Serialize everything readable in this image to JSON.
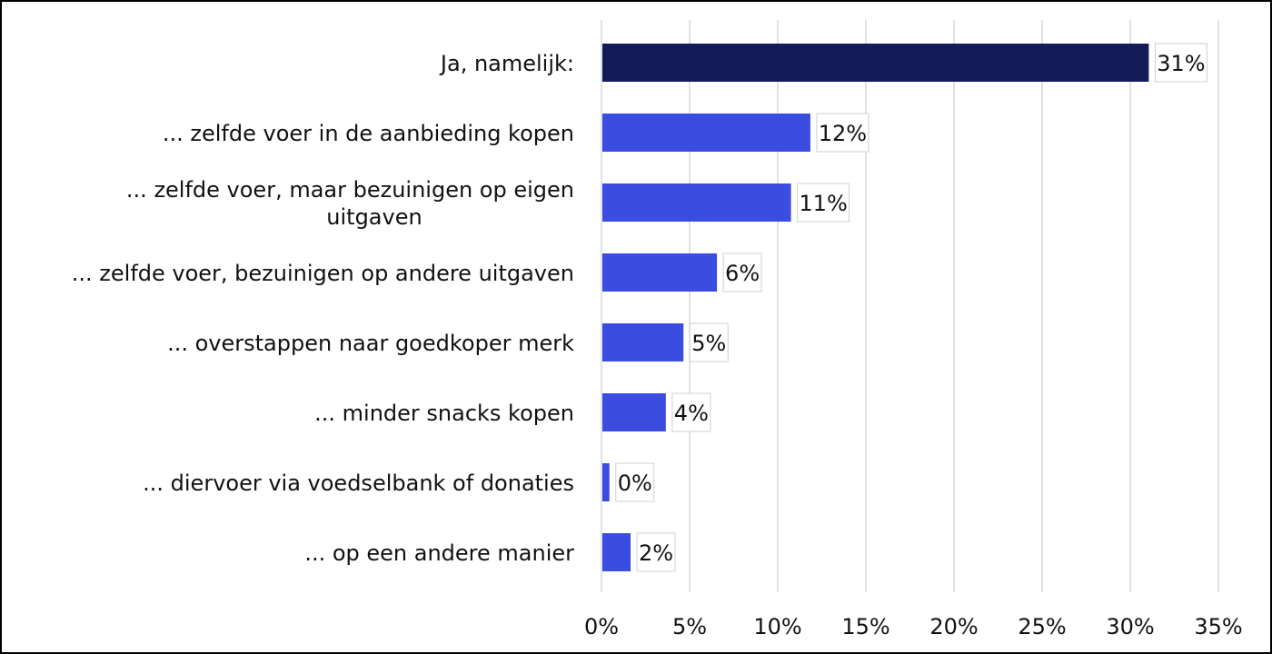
{
  "colors": {
    "highlight_bar": "#131c56",
    "bar": "#3a4de0",
    "grid": "#d4d8e0",
    "label_box_border": "#d0d0d0",
    "text": "#111111"
  },
  "chart_data": {
    "type": "bar",
    "orientation": "horizontal",
    "title": "",
    "xlabel": "",
    "ylabel": "",
    "xlim": [
      0,
      35
    ],
    "grid": true,
    "legend": "none",
    "categories": [
      [
        "Ja, namelijk:"
      ],
      [
        "... zelfde voer in de aanbieding kopen"
      ],
      [
        "... zelfde voer, maar bezuinigen op eigen",
        "uitgaven"
      ],
      [
        "... zelfde voer, bezuinigen op andere uitgaven"
      ],
      [
        "... overstappen naar goedkoper merk"
      ],
      [
        "... minder snacks kopen"
      ],
      [
        "... diervoer via voedselbank of donaties"
      ],
      [
        "... op een andere manier"
      ]
    ],
    "values": [
      31,
      11.8,
      10.7,
      6.5,
      4.6,
      3.6,
      0.4,
      1.6
    ],
    "data_labels": [
      "31%",
      "12%",
      "11%",
      "6%",
      "5%",
      "4%",
      "0%",
      "2%"
    ],
    "highlight_index": 0,
    "x_ticks": [
      0,
      5,
      10,
      15,
      20,
      25,
      30,
      35
    ],
    "x_tick_labels": [
      "0%",
      "5%",
      "10%",
      "15%",
      "20%",
      "25%",
      "30%",
      "35%"
    ]
  }
}
